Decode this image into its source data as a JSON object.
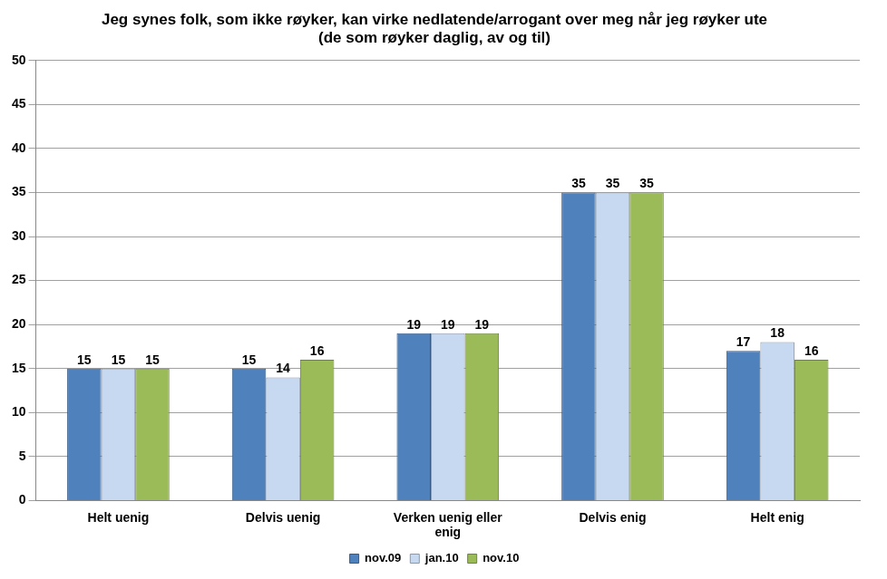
{
  "chart_data": {
    "type": "bar",
    "title": "Jeg synes folk, som ikke røyker, kan virke nedlatende/arrogant over meg når jeg røyker ute (de som røyker daglig, av og til)",
    "categories": [
      "Helt uenig",
      "Delvis uenig",
      "Verken uenig eller enig",
      "Delvis enig",
      "Helt enig"
    ],
    "series": [
      {
        "name": "nov.09",
        "color": "#4f81bd",
        "values": [
          15,
          15,
          19,
          35,
          17
        ]
      },
      {
        "name": "jan.10",
        "color": "#c6d9f1",
        "values": [
          15,
          14,
          19,
          35,
          18
        ]
      },
      {
        "name": "nov.10",
        "color": "#9bbb59",
        "values": [
          15,
          16,
          19,
          35,
          16
        ]
      }
    ],
    "ylim": [
      0,
      50
    ],
    "yticks": [
      0,
      5,
      10,
      15,
      20,
      25,
      30,
      35,
      40,
      45,
      50
    ],
    "grid": true,
    "legend": "bottom",
    "data_labels": true
  }
}
